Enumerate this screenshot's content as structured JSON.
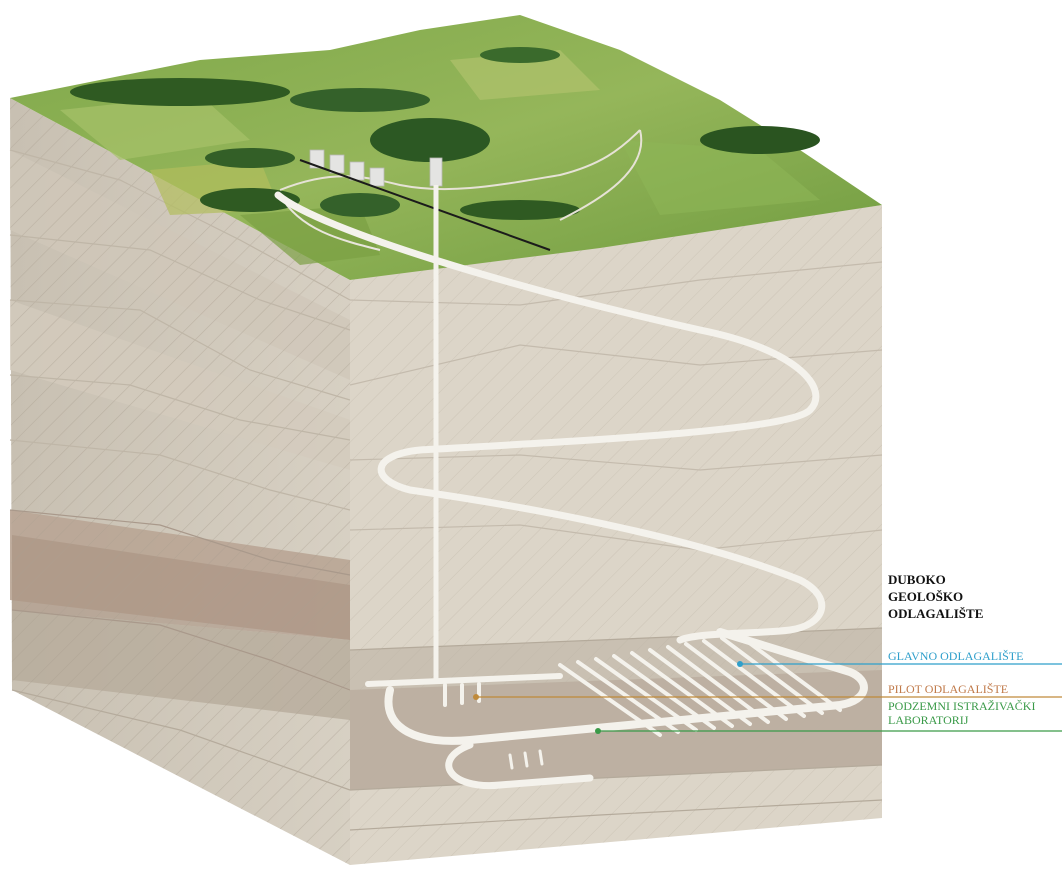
{
  "title_lines": [
    "DUBOKO",
    "GEOLOŠKO",
    "ODLAGALIŠTE"
  ],
  "labels": {
    "main_repository": "GLAVNO ODLAGALIŠTE",
    "pilot_repository": "PILOT ODLAGALIŠTE",
    "lab_line1": "PODZEMNI ISTRAŽIVAČKI",
    "lab_line2": "LABORATORIJ"
  },
  "colors": {
    "main_repository": "#2f9fcb",
    "pilot_repository": "#c07a4a",
    "lab": "#3a9a48",
    "title": "#111111"
  }
}
